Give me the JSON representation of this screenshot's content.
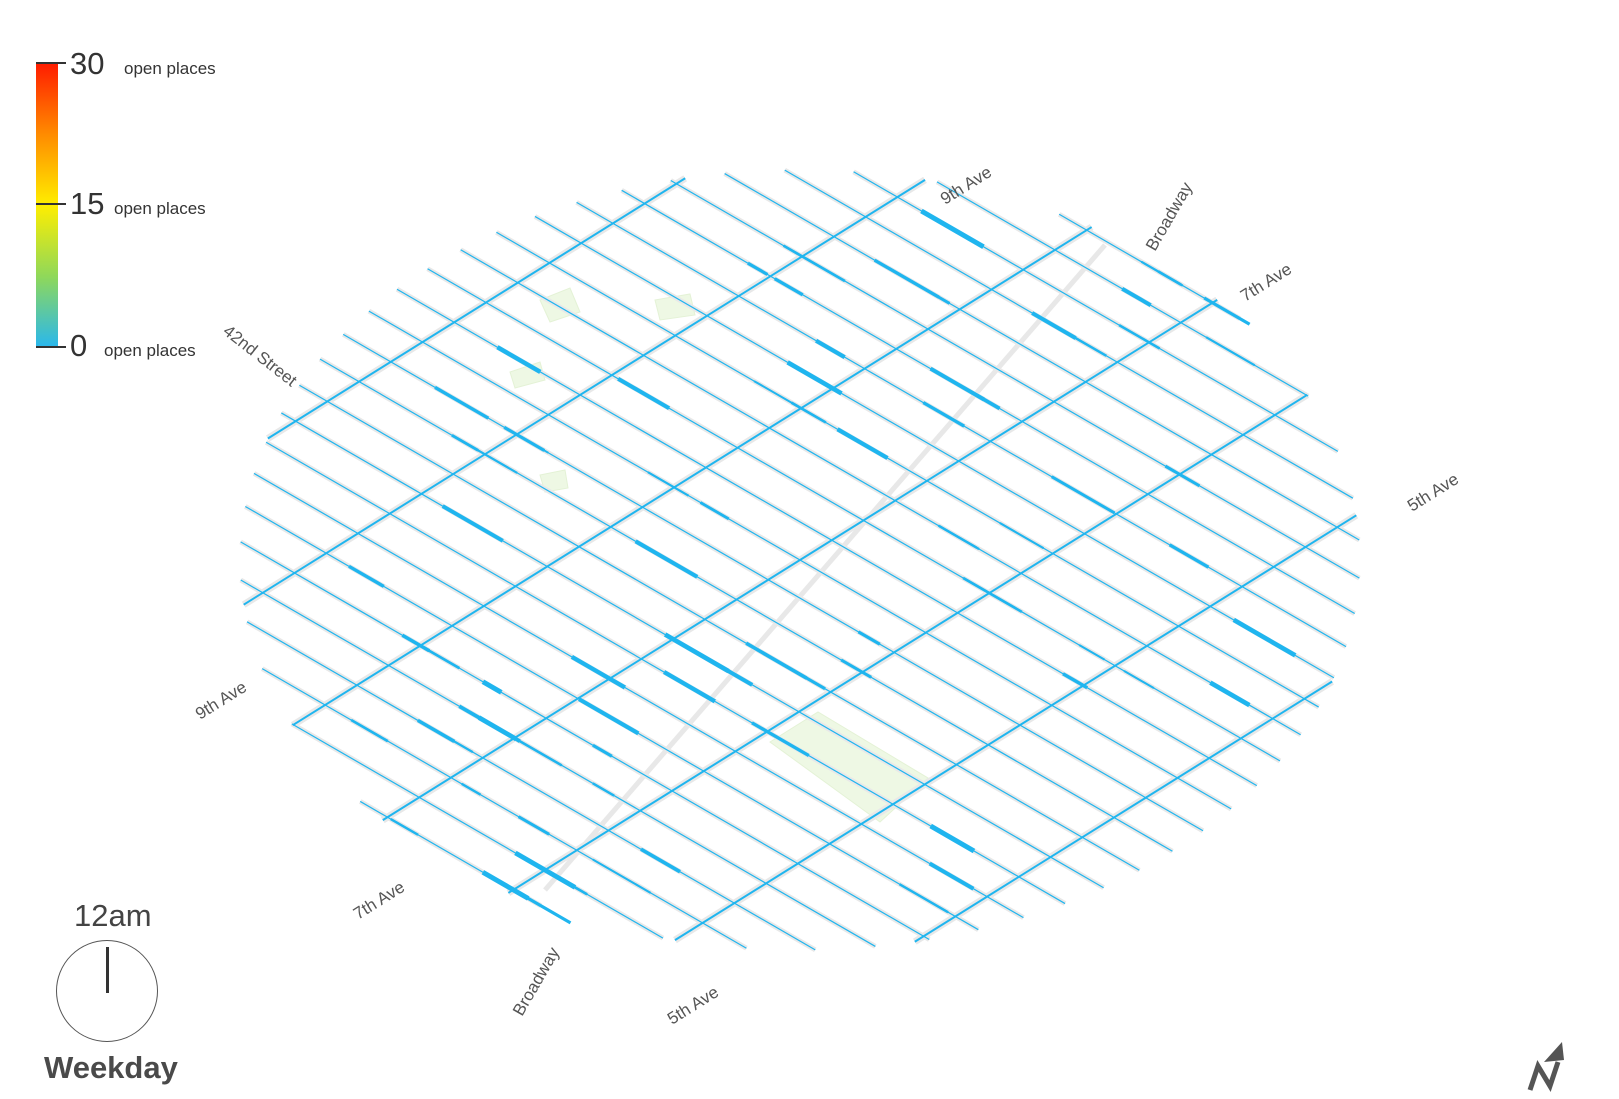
{
  "legend": {
    "max_value": "30",
    "mid_value": "15",
    "min_value": "0",
    "unit": "open places",
    "color_max": "#ff1a00",
    "color_mid": "#ffee00",
    "color_min": "#28b7ef"
  },
  "time": {
    "label": "12am",
    "day": "Weekday"
  },
  "street_labels": {
    "forty_second": "42nd Street",
    "ninth_ave": "9th Ave",
    "seventh_ave": "7th Ave",
    "fifth_ave": "5th Ave",
    "broadway": "Broadway"
  },
  "compass_icon": "north-arrow-icon",
  "colors": {
    "street": "#e8e8e8",
    "bar": "#1fb5ef",
    "park": "#eef8e4"
  }
}
